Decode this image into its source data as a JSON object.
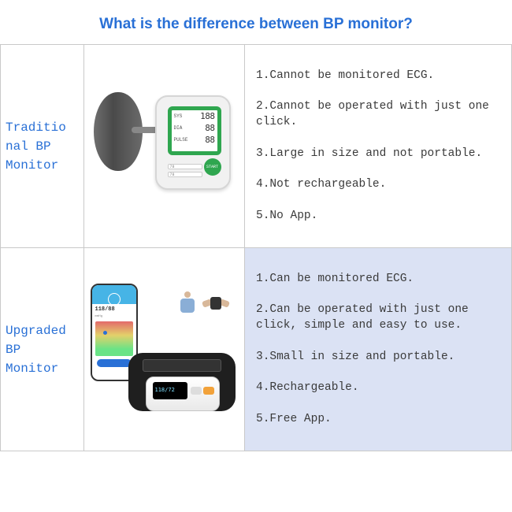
{
  "title": "What is the difference between BP monitor?",
  "title_color": "#2970d6",
  "border_color": "#c9c9c9",
  "highlight_bg": "#dbe2f4",
  "rows": [
    {
      "label": "Traditio\nnal BP\nMonitor",
      "highlight": false,
      "features": [
        "1.Cannot be monitored ECG.",
        "2.Cannot be operated with just one click.",
        "3.Large in size and not portable.",
        "4.Not rechargeable.",
        "5.No App."
      ],
      "illustration": {
        "type": "traditional-bp",
        "cuff_color": "#5a5a5a",
        "device_body": "#f1f1f1",
        "accent": "#2fa64f",
        "screen_labels": [
          "SYS",
          "DIA",
          "PULSE"
        ],
        "screen_values": [
          "188",
          "88",
          "88"
        ],
        "bar_values": [
          "78",
          "78"
        ],
        "start_label": "START"
      }
    },
    {
      "label": "Upgraded\nBP\nMonitor",
      "highlight": true,
      "features": [
        "1.Can be monitored ECG.",
        "2.Can be operated with just one click, simple and easy to use.",
        "3.Small in size and portable.",
        "4.Rechargeable.",
        "5.Free App."
      ],
      "illustration": {
        "type": "upgraded-bp",
        "phone_reading": "118/88",
        "phone_unit": "mmHg",
        "phone_header_color": "#46b4e6",
        "phone_button_color": "#2970d6",
        "cuff_color": "#1f1f1f",
        "device_reading": "118/72",
        "device_accent": "#f2a23a"
      }
    }
  ]
}
